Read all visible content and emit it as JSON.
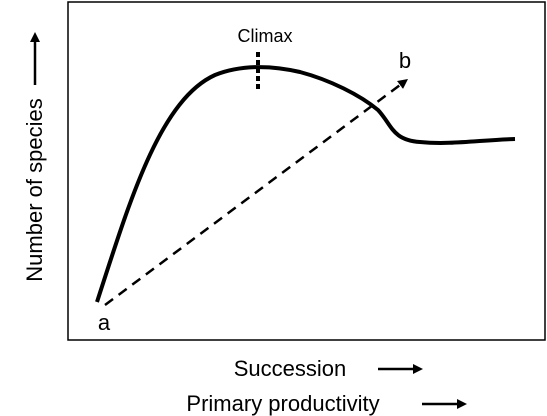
{
  "diagram": {
    "y_axis_label": "Number of species",
    "x_axis_labels": [
      "Succession",
      "Primary productivity"
    ],
    "annotations": {
      "climax": "Climax",
      "start": "a",
      "end": "b"
    }
  }
}
